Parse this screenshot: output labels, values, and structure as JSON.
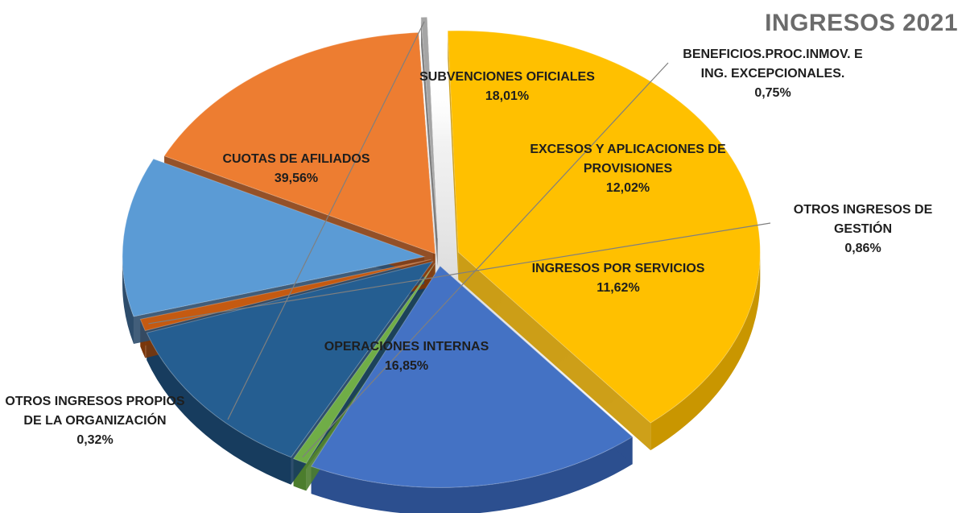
{
  "chart_data": {
    "type": "pie",
    "title": "INGRESOS 2021",
    "slices": [
      {
        "name": "CUOTAS DE AFILIADOS",
        "value": 39.56,
        "label": "39,56%",
        "color": "#ffc000",
        "dark": "#c99600"
      },
      {
        "name": "SUBVENCIONES OFICIALES",
        "value": 18.01,
        "label": "18,01%",
        "color": "#4472c4",
        "dark": "#2c4f8f"
      },
      {
        "name": "BENEFICIOS.PROC.INMOV. E ING. EXCEPCIONALES.",
        "value": 0.75,
        "label": "0,75%",
        "color": "#70ad47",
        "dark": "#4c7d2d"
      },
      {
        "name": "EXCESOS Y APLICACIONES DE PROVISIONES",
        "value": 12.02,
        "label": "12,02%",
        "color": "#255e91",
        "dark": "#173c5e"
      },
      {
        "name": "OTROS INGRESOS DE GESTIÓN",
        "value": 0.86,
        "label": "0,86%",
        "color": "#c55a11",
        "dark": "#7a360a"
      },
      {
        "name": "INGRESOS POR SERVICIOS",
        "value": 11.62,
        "label": "11,62%",
        "color": "#5b9bd5",
        "dark": "#2d4c6b"
      },
      {
        "name": "OPERACIONES INTERNAS",
        "value": 16.85,
        "label": "16,85%",
        "color": "#ed7d31",
        "dark": "#8a3f12"
      },
      {
        "name": "OTROS INGRESOS PROPIOS DE LA ORGANIZACIÓN",
        "value": 0.32,
        "label": "0,32%",
        "color": "#a5a5a5",
        "dark": "#707070"
      }
    ]
  }
}
